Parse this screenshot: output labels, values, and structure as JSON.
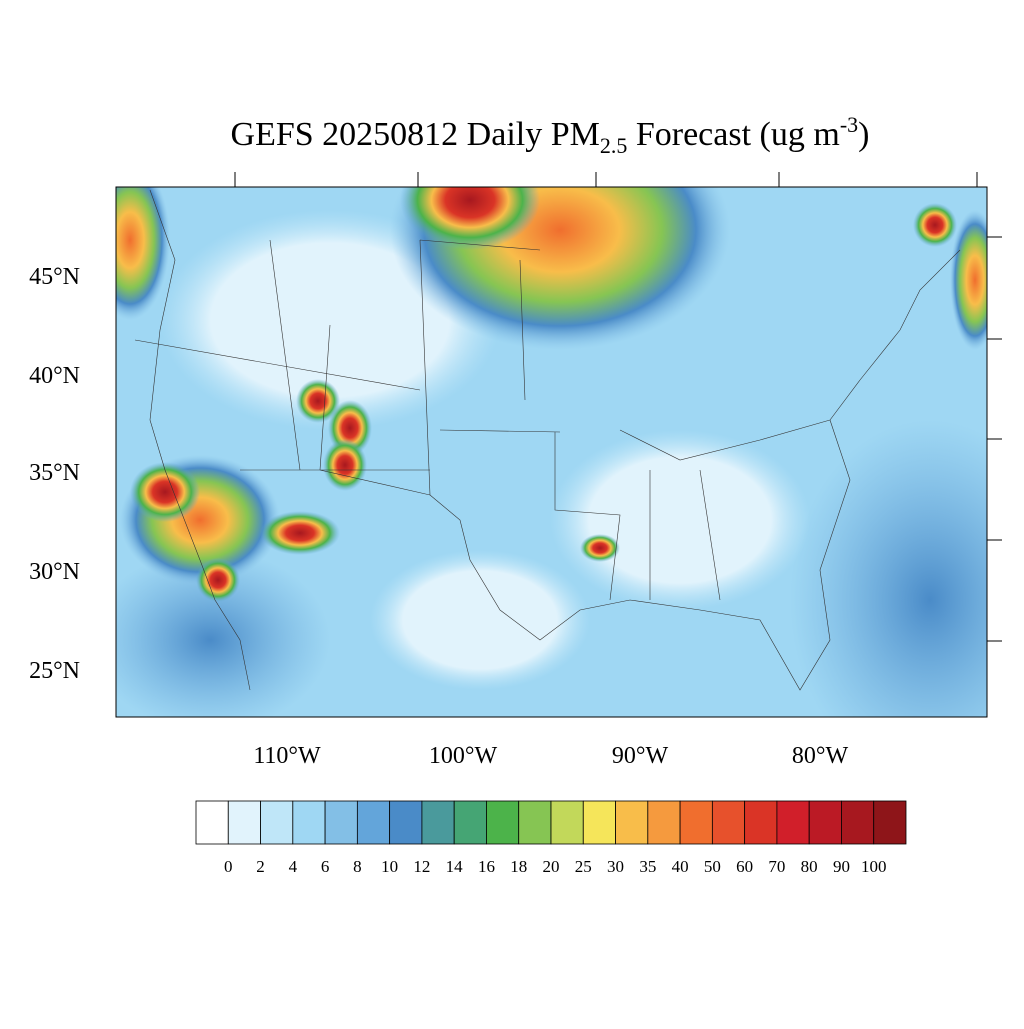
{
  "header": {
    "title": {
      "prefix": "GEFS 20250812 Daily PM",
      "sub": "2.5",
      "middle": " Forecast (ug m",
      "sup": "-3",
      "suffix": ")"
    }
  },
  "map": {
    "lat_labels": [
      "45°N",
      "40°N",
      "35°N",
      "30°N",
      "25°N"
    ],
    "lon_labels": [
      "110°W",
      "100°W",
      "90°W",
      "80°W"
    ]
  },
  "colorbar": {
    "levels": [
      0,
      2,
      4,
      6,
      8,
      10,
      12,
      14,
      16,
      18,
      20,
      25,
      30,
      35,
      40,
      50,
      60,
      70,
      80,
      90,
      100
    ],
    "colors": [
      "#ffffff",
      "#e1f3fc",
      "#bfe6f8",
      "#9fd7f3",
      "#83bfe6",
      "#63a5da",
      "#4a8bc8",
      "#4a9a9c",
      "#45a574",
      "#4cb34a",
      "#86c553",
      "#c2d85a",
      "#f5e55a",
      "#f8bd4a",
      "#f59a3e",
      "#f06e2e",
      "#e7512c",
      "#da3426",
      "#d11f2a",
      "#bb1a25",
      "#a7181f",
      "#8e1519"
    ]
  }
}
